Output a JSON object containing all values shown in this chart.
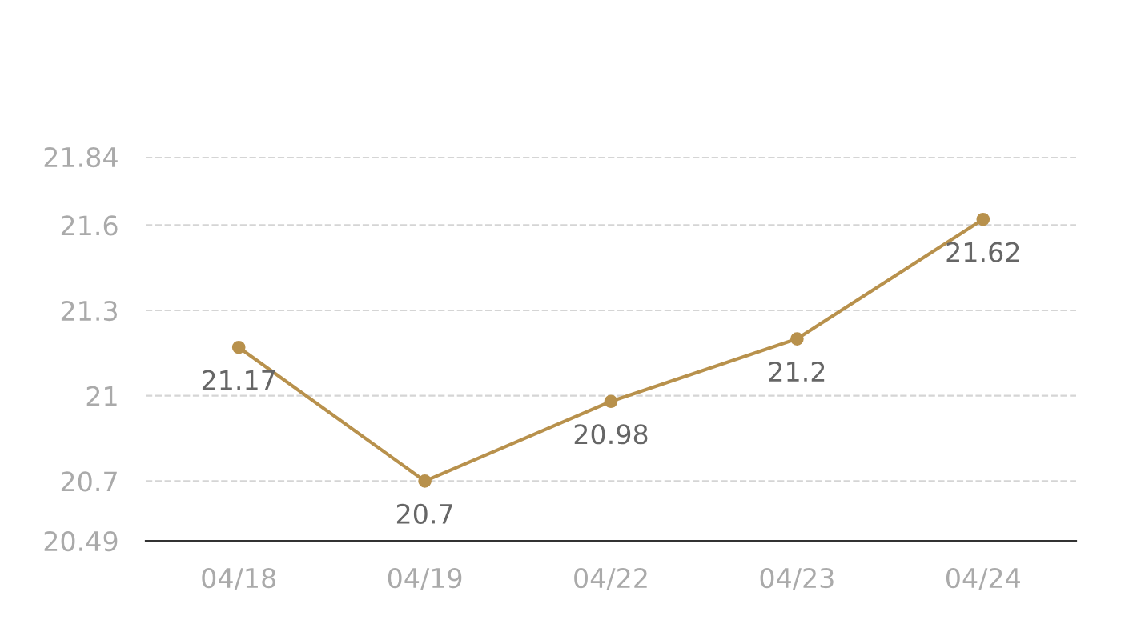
{
  "chart_data": {
    "type": "line",
    "categories": [
      "04/18",
      "04/19",
      "04/22",
      "04/23",
      "04/24"
    ],
    "series": [
      {
        "color": "#b8914c",
        "values": [
          21.17,
          20.7,
          20.98,
          21.2,
          21.62
        ]
      }
    ],
    "ylim": [
      20.49,
      21.84
    ],
    "yticks": [
      20.49,
      20.7,
      21,
      21.3,
      21.6,
      21.84
    ],
    "grid": "y",
    "marker": "circle",
    "line_style": "solid",
    "data_labels": true
  }
}
